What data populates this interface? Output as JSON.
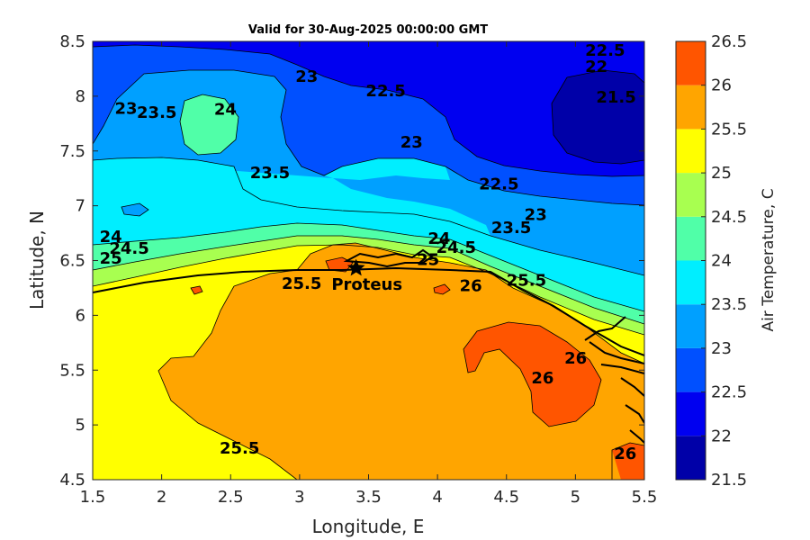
{
  "chart_data": {
    "type": "heatmap",
    "title": "Valid for 30-Aug-2025 00:00:00 GMT",
    "xlabel": "Longitude, E",
    "ylabel": "Latitude, N",
    "xlim": [
      1.5,
      5.5
    ],
    "ylim": [
      4.5,
      8.5
    ],
    "xticks": [
      "1.5",
      "2",
      "2.5",
      "3",
      "3.5",
      "4",
      "4.5",
      "5",
      "5.5"
    ],
    "yticks": [
      "4.5",
      "5",
      "5.5",
      "6",
      "6.5",
      "7",
      "7.5",
      "8",
      "8.5"
    ],
    "colorbar": {
      "label": "Air Temperature, C",
      "ticks": [
        "21.5",
        "22",
        "22.5",
        "23",
        "23.5",
        "24",
        "24.5",
        "25",
        "25.5",
        "26",
        "26.5"
      ],
      "levels": [
        21.5,
        22,
        22.5,
        23,
        23.5,
        24,
        24.5,
        25,
        25.5,
        26,
        26.5
      ],
      "colors": [
        "#0000A8",
        "#0000F0",
        "#0050FF",
        "#00A0FF",
        "#00EEFF",
        "#50FFA8",
        "#A8FF50",
        "#FFFF00",
        "#FFA500",
        "#FF5500",
        "#FF0000"
      ]
    },
    "station": {
      "name": "Proteus",
      "lon": 3.41,
      "lat": 6.43
    },
    "contour_labels": [
      {
        "text": "22.5",
        "lon": 5.07,
        "lat": 8.37
      },
      {
        "text": "22",
        "lon": 5.07,
        "lat": 8.22
      },
      {
        "text": "21.5",
        "lon": 5.15,
        "lat": 7.94
      },
      {
        "text": "23",
        "lon": 2.97,
        "lat": 8.13
      },
      {
        "text": "22.5",
        "lon": 3.48,
        "lat": 8.0
      },
      {
        "text": "23",
        "lon": 1.66,
        "lat": 7.84
      },
      {
        "text": "23.5",
        "lon": 1.82,
        "lat": 7.8
      },
      {
        "text": "24",
        "lon": 2.38,
        "lat": 7.83
      },
      {
        "text": "23",
        "lon": 3.73,
        "lat": 7.53
      },
      {
        "text": "23.5",
        "lon": 2.64,
        "lat": 7.25
      },
      {
        "text": "22.5",
        "lon": 4.3,
        "lat": 7.15
      },
      {
        "text": "23",
        "lon": 4.63,
        "lat": 6.87
      },
      {
        "text": "23.5",
        "lon": 4.39,
        "lat": 6.75
      },
      {
        "text": "24",
        "lon": 1.55,
        "lat": 6.67
      },
      {
        "text": "24.5",
        "lon": 1.62,
        "lat": 6.56
      },
      {
        "text": "25",
        "lon": 1.55,
        "lat": 6.47
      },
      {
        "text": "24",
        "lon": 3.93,
        "lat": 6.65
      },
      {
        "text": "24.5",
        "lon": 3.99,
        "lat": 6.57
      },
      {
        "text": "25",
        "lon": 3.85,
        "lat": 6.46
      },
      {
        "text": "25.5",
        "lon": 2.87,
        "lat": 6.24
      },
      {
        "text": "26",
        "lon": 4.16,
        "lat": 6.22
      },
      {
        "text": "25.5",
        "lon": 4.5,
        "lat": 6.27
      },
      {
        "text": "26",
        "lon": 4.92,
        "lat": 5.56
      },
      {
        "text": "26",
        "lon": 4.68,
        "lat": 5.38
      },
      {
        "text": "25.5",
        "lon": 2.42,
        "lat": 4.74
      },
      {
        "text": "26",
        "lon": 5.28,
        "lat": 4.69
      }
    ]
  }
}
